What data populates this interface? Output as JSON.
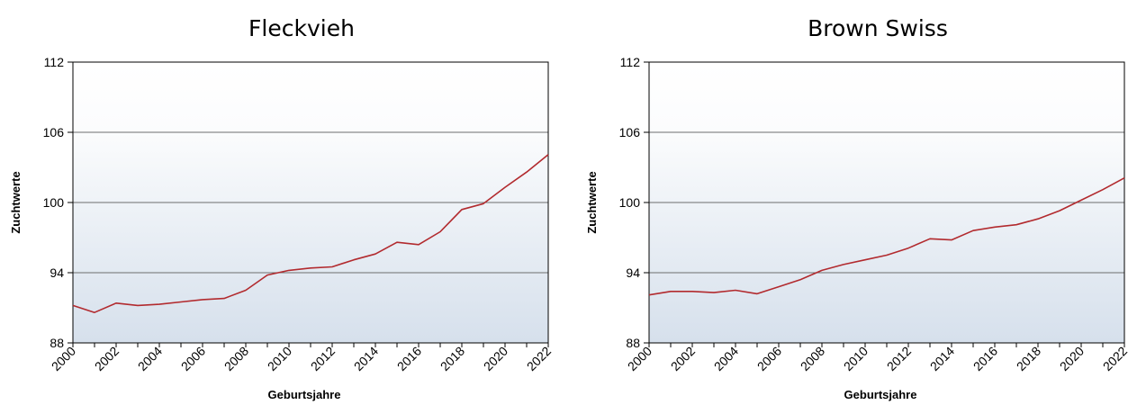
{
  "chart_data": [
    {
      "type": "line",
      "title": "Fleckvieh",
      "xlabel": "Geburtsjahre",
      "ylabel": "Zuchtwerte",
      "xlim": [
        2000,
        2022
      ],
      "ylim": [
        88,
        112
      ],
      "yticks": [
        "88",
        "94",
        "100",
        "106",
        "112"
      ],
      "xticks": [
        "2000",
        "2002",
        "2004",
        "2006",
        "2008",
        "2010",
        "2012",
        "2014",
        "2016",
        "2018",
        "2020",
        "2022"
      ],
      "grid": "horizontal at 94, 100, 106",
      "line_color": "#b22a2e",
      "x": [
        2000,
        2001,
        2002,
        2003,
        2004,
        2005,
        2006,
        2007,
        2008,
        2009,
        2010,
        2011,
        2012,
        2013,
        2014,
        2015,
        2016,
        2017,
        2018,
        2019,
        2020,
        2021,
        2022
      ],
      "values": [
        91.2,
        90.6,
        91.4,
        91.2,
        91.3,
        91.5,
        91.7,
        91.8,
        92.5,
        93.8,
        94.2,
        94.4,
        94.5,
        95.1,
        95.6,
        96.6,
        96.4,
        97.5,
        99.4,
        99.9,
        101.3,
        102.6,
        104.1
      ]
    },
    {
      "type": "line",
      "title": "Brown Swiss",
      "xlabel": "Geburtsjahre",
      "ylabel": "Zuchtwerte",
      "xlim": [
        2000,
        2022
      ],
      "ylim": [
        88,
        112
      ],
      "yticks": [
        "88",
        "94",
        "100",
        "106",
        "112"
      ],
      "xticks": [
        "2000",
        "2002",
        "2004",
        "2006",
        "2008",
        "2010",
        "2012",
        "2014",
        "2016",
        "2018",
        "2020",
        "2022"
      ],
      "grid": "horizontal at 94, 100, 106",
      "line_color": "#b22a2e",
      "x": [
        2000,
        2001,
        2002,
        2003,
        2004,
        2005,
        2006,
        2007,
        2008,
        2009,
        2010,
        2011,
        2012,
        2013,
        2014,
        2015,
        2016,
        2017,
        2018,
        2019,
        2020,
        2021,
        2022
      ],
      "values": [
        92.1,
        92.4,
        92.4,
        92.3,
        92.5,
        92.2,
        92.8,
        93.4,
        94.2,
        94.7,
        95.1,
        95.5,
        96.1,
        96.9,
        96.8,
        97.6,
        97.9,
        98.1,
        98.6,
        99.3,
        100.2,
        101.1,
        102.1
      ]
    }
  ]
}
